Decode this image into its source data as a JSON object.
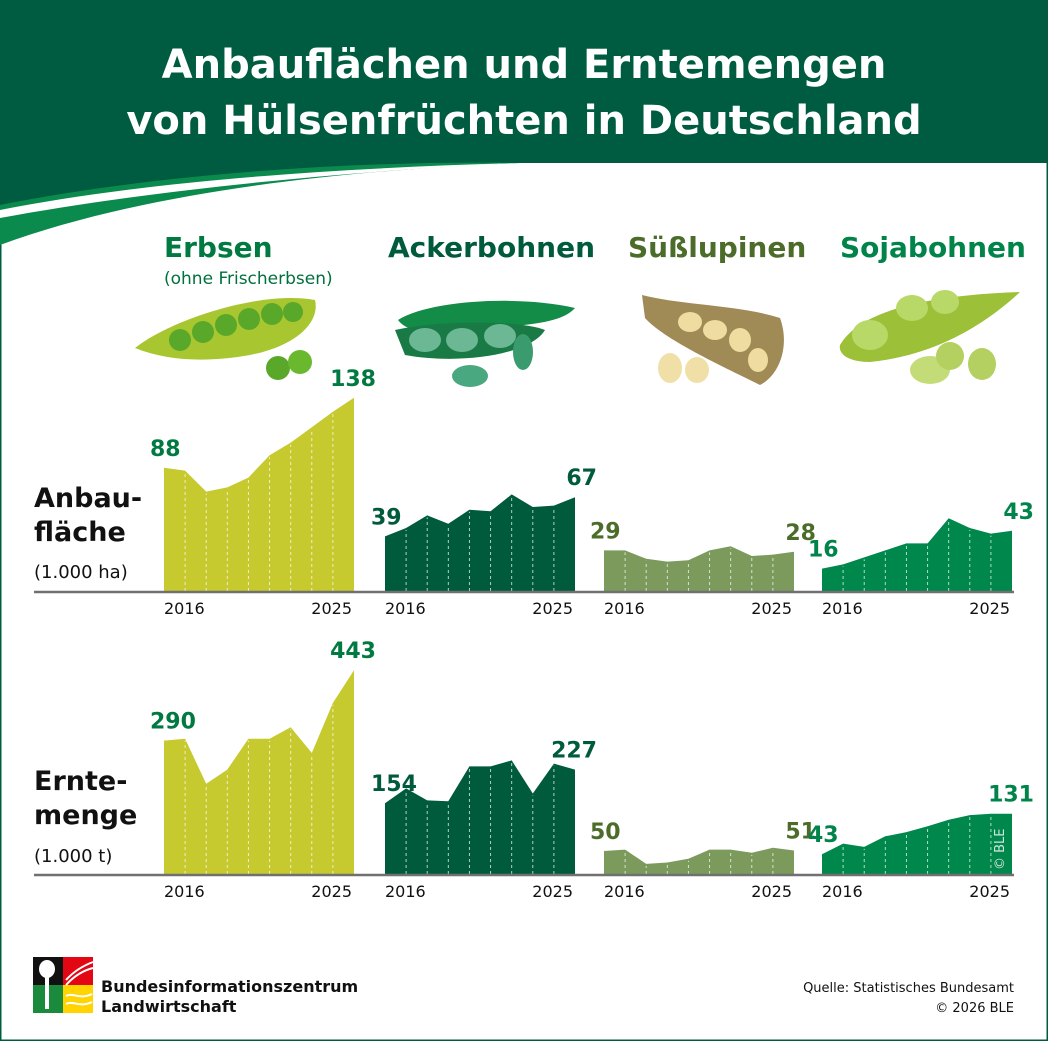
{
  "header": {
    "title_line1": "Anbauflächen und Erntemengen",
    "title_line2": "von Hülsenfrüchten in Deutschland"
  },
  "crops": [
    {
      "name": "Erbsen",
      "note": "(ohne Frischerbsen)",
      "label_color": "#007a40",
      "fill": "#c6ca2e",
      "icon": "pea-pod-icon"
    },
    {
      "name": "Ackerbohnen",
      "note": "",
      "label_color": "#005a3c",
      "fill": "#005a3c",
      "icon": "field-bean-pod-icon"
    },
    {
      "name": "Süßlupinen",
      "note": "",
      "label_color": "#4c6c2a",
      "fill": "#7b9a5c",
      "icon": "lupin-pod-icon"
    },
    {
      "name": "Sojabohnen",
      "note": "",
      "label_color": "#00844a",
      "fill": "#00874b",
      "icon": "soybean-pod-icon"
    }
  ],
  "chart_data": [
    {
      "type": "area",
      "ylabel_lines": [
        "Anbau-",
        "fläche",
        "(1.000 ha)"
      ],
      "categories": [
        2016,
        2017,
        2018,
        2019,
        2020,
        2021,
        2022,
        2023,
        2024,
        2025
      ],
      "tick_labels": [
        "2016",
        "2025"
      ],
      "series": [
        {
          "name": "Erbsen",
          "values": [
            88,
            86,
            71,
            74,
            81,
            97,
            106,
            117,
            128,
            138
          ]
        },
        {
          "name": "Ackerbohnen",
          "values": [
            39,
            45,
            54,
            48,
            58,
            57,
            69,
            60,
            61,
            67
          ]
        },
        {
          "name": "Süßlupinen",
          "values": [
            29,
            29,
            23,
            21,
            22,
            29,
            32,
            25,
            26,
            28
          ]
        },
        {
          "name": "Sojabohnen",
          "values": [
            16,
            19,
            24,
            29,
            34,
            34,
            52,
            45,
            41,
            43
          ]
        }
      ],
      "ylim": [
        0,
        140
      ],
      "grid": false
    },
    {
      "type": "area",
      "ylabel_lines": [
        "Ernte-",
        "menge",
        "(1.000 t)"
      ],
      "categories": [
        2016,
        2017,
        2018,
        2019,
        2020,
        2021,
        2022,
        2023,
        2024,
        2025
      ],
      "tick_labels": [
        "2016",
        "2025"
      ],
      "series": [
        {
          "name": "Erbsen",
          "values": [
            290,
            294,
            196,
            227,
            294,
            294,
            319,
            263,
            372,
            443
          ]
        },
        {
          "name": "Ackerbohnen",
          "values": [
            154,
            186,
            160,
            158,
            234,
            234,
            247,
            175,
            240,
            227
          ]
        },
        {
          "name": "Süßlupinen",
          "values": [
            50,
            53,
            22,
            25,
            33,
            53,
            53,
            46,
            57,
            51
          ]
        },
        {
          "name": "Sojabohnen",
          "values": [
            43,
            66,
            59,
            82,
            91,
            104,
            118,
            128,
            131,
            131
          ]
        }
      ],
      "ylim": [
        0,
        450
      ],
      "grid": false
    }
  ],
  "watermark": "© BLE",
  "footer": {
    "logo_line1": "Bundesinformationszentrum",
    "logo_line2": "Landwirtschaft",
    "source": "Quelle: Statistisches Bundesamt",
    "copyright": "© 2026 BLE"
  },
  "colors": {
    "header": "#005c40",
    "axis": "#707070"
  }
}
